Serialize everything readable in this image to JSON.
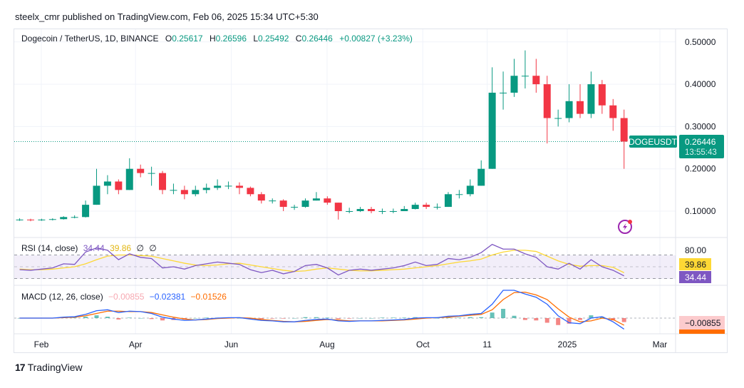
{
  "publisher": "steelx_cmr published on TradingView.com, Feb 06, 2025 15:34 UTC+5:30",
  "footer_logo": "TradingView",
  "colors": {
    "up": "#089981",
    "down": "#f23645",
    "rsi": "#7e57c2",
    "rsi_ma": "#fdd835",
    "macd": "#2962ff",
    "signal": "#ff6d00",
    "hist_up": "#26a69a",
    "hist_down": "#ef5350"
  },
  "legend": {
    "symbol": "Dogecoin / TetherUS, 1D, BINANCE",
    "o_label": "O",
    "o": "0.25617",
    "h_label": "H",
    "h": "0.26596",
    "l_label": "L",
    "l": "0.25492",
    "c_label": "C",
    "c": "0.26446",
    "change": "+0.00827 (+3.23%)"
  },
  "price_tag": {
    "ticker": "DOGEUSDT",
    "price": "0.26446",
    "countdown": "13:55:43"
  },
  "rsi_legend": {
    "title": "RSI (14, close)",
    "rsi": "34.44",
    "ma": "39.86",
    "v3": "∅",
    "v4": "∅"
  },
  "macd_legend": {
    "title": "MACD (12, 26, close)",
    "hist": "−0.00855",
    "macd": "−0.02381",
    "signal": "−0.01526"
  },
  "rsi_axis": {
    "top": "80.00",
    "ma_tag": "39.86",
    "rsi_tag": "34.44"
  },
  "macd_axis": {
    "hist_tag": "−0.00855"
  },
  "icons": {
    "alert": "lightning-icon"
  },
  "chart_data": [
    {
      "type": "candlestick",
      "title": "Dogecoin / TetherUS, 1D, BINANCE",
      "y_ticks": [
        "0.10000",
        "0.20000",
        "0.30000",
        "0.40000",
        "0.50000"
      ],
      "ylim": [
        0.045,
        0.53
      ],
      "x_ticks": [
        {
          "label": "Feb",
          "date": "2024-02-01"
        },
        {
          "label": "Apr",
          "date": "2024-04-01"
        },
        {
          "label": "Jun",
          "date": "2024-06-01"
        },
        {
          "label": "Aug",
          "date": "2024-08-01"
        },
        {
          "label": "Oct",
          "date": "2024-10-01"
        },
        {
          "label": "11",
          "date": "2024-11-11"
        },
        {
          "label": "2025",
          "date": "2025-01-01"
        },
        {
          "label": "Mar",
          "date": "2025-03-01"
        }
      ],
      "last_price": 0.26446,
      "grid": true,
      "dates": [
        "2024-01-15",
        "2024-01-22",
        "2024-01-29",
        "2024-02-05",
        "2024-02-12",
        "2024-02-19",
        "2024-02-26",
        "2024-03-04",
        "2024-03-11",
        "2024-03-18",
        "2024-03-25",
        "2024-04-01",
        "2024-04-08",
        "2024-04-15",
        "2024-04-22",
        "2024-04-29",
        "2024-05-06",
        "2024-05-13",
        "2024-05-20",
        "2024-05-27",
        "2024-06-03",
        "2024-06-10",
        "2024-06-17",
        "2024-06-24",
        "2024-07-01",
        "2024-07-08",
        "2024-07-15",
        "2024-07-22",
        "2024-07-29",
        "2024-08-05",
        "2024-08-12",
        "2024-08-19",
        "2024-08-26",
        "2024-09-02",
        "2024-09-09",
        "2024-09-16",
        "2024-09-23",
        "2024-09-30",
        "2024-10-07",
        "2024-10-14",
        "2024-10-21",
        "2024-10-28",
        "2024-11-04",
        "2024-11-11",
        "2024-11-18",
        "2024-11-25",
        "2024-12-02",
        "2024-12-09",
        "2024-12-16",
        "2024-12-23",
        "2024-12-30",
        "2025-01-06",
        "2025-01-13",
        "2025-01-20",
        "2025-01-27",
        "2025-02-03"
      ],
      "close": [
        0.08,
        0.079,
        0.08,
        0.081,
        0.086,
        0.086,
        0.115,
        0.16,
        0.17,
        0.15,
        0.2,
        0.19,
        0.19,
        0.15,
        0.15,
        0.14,
        0.15,
        0.155,
        0.16,
        0.16,
        0.155,
        0.14,
        0.125,
        0.125,
        0.11,
        0.11,
        0.125,
        0.13,
        0.12,
        0.1,
        0.1,
        0.105,
        0.1,
        0.1,
        0.1,
        0.105,
        0.115,
        0.11,
        0.11,
        0.14,
        0.14,
        0.16,
        0.2,
        0.38,
        0.38,
        0.42,
        0.42,
        0.4,
        0.32,
        0.32,
        0.36,
        0.33,
        0.4,
        0.35,
        0.32,
        0.26446
      ],
      "high": [
        0.083,
        0.082,
        0.082,
        0.083,
        0.088,
        0.09,
        0.125,
        0.2,
        0.185,
        0.175,
        0.225,
        0.21,
        0.205,
        0.195,
        0.165,
        0.16,
        0.16,
        0.165,
        0.175,
        0.17,
        0.168,
        0.158,
        0.145,
        0.13,
        0.128,
        0.115,
        0.13,
        0.145,
        0.135,
        0.12,
        0.108,
        0.11,
        0.11,
        0.106,
        0.106,
        0.112,
        0.12,
        0.12,
        0.118,
        0.145,
        0.15,
        0.175,
        0.22,
        0.44,
        0.43,
        0.46,
        0.48,
        0.46,
        0.42,
        0.34,
        0.4,
        0.4,
        0.43,
        0.41,
        0.365,
        0.34
      ],
      "low": [
        0.077,
        0.076,
        0.077,
        0.078,
        0.08,
        0.083,
        0.085,
        0.115,
        0.14,
        0.14,
        0.15,
        0.18,
        0.16,
        0.14,
        0.14,
        0.128,
        0.135,
        0.142,
        0.15,
        0.152,
        0.14,
        0.135,
        0.118,
        0.118,
        0.1,
        0.103,
        0.108,
        0.125,
        0.115,
        0.08,
        0.095,
        0.098,
        0.095,
        0.093,
        0.095,
        0.1,
        0.104,
        0.105,
        0.104,
        0.11,
        0.13,
        0.135,
        0.16,
        0.2,
        0.34,
        0.37,
        0.39,
        0.38,
        0.26,
        0.3,
        0.31,
        0.32,
        0.32,
        0.33,
        0.29,
        0.2
      ]
    },
    {
      "type": "line",
      "title": "RSI (14, close)",
      "y_ticks": [
        "80.00"
      ],
      "ylim": [
        15,
        90
      ],
      "bands": [
        30,
        50,
        70
      ],
      "series": [
        {
          "name": "RSI",
          "values": [
            45,
            44,
            46,
            48,
            55,
            54,
            75,
            82,
            78,
            62,
            72,
            66,
            64,
            48,
            50,
            46,
            52,
            55,
            58,
            56,
            54,
            45,
            40,
            44,
            38,
            42,
            52,
            54,
            48,
            36,
            44,
            46,
            44,
            46,
            48,
            52,
            58,
            52,
            54,
            64,
            62,
            66,
            74,
            88,
            80,
            80,
            72,
            66,
            50,
            46,
            56,
            46,
            62,
            50,
            44,
            34.44
          ]
        },
        {
          "name": "RSI MA",
          "values": [
            46,
            45,
            45,
            46,
            48,
            50,
            55,
            62,
            68,
            70,
            70,
            69,
            68,
            64,
            60,
            56,
            53,
            52,
            53,
            55,
            56,
            53,
            50,
            47,
            44,
            42,
            43,
            46,
            48,
            46,
            44,
            43,
            43,
            44,
            45,
            46,
            48,
            50,
            52,
            55,
            58,
            60,
            63,
            70,
            75,
            78,
            78,
            76,
            68,
            60,
            54,
            51,
            52,
            52,
            49,
            39.86
          ]
        }
      ]
    },
    {
      "type": "line",
      "title": "MACD (12, 26, close)",
      "series": [
        {
          "name": "MACD",
          "values": [
            0,
            0,
            0,
            0,
            0.002,
            0.003,
            0.008,
            0.016,
            0.018,
            0.012,
            0.015,
            0.014,
            0.01,
            0.002,
            -0.002,
            -0.005,
            -0.004,
            -0.002,
            0.0,
            0.001,
            0.001,
            -0.002,
            -0.005,
            -0.006,
            -0.008,
            -0.008,
            -0.005,
            -0.003,
            -0.002,
            -0.006,
            -0.007,
            -0.006,
            -0.006,
            -0.005,
            -0.004,
            -0.003,
            0.0,
            0.001,
            0.001,
            0.004,
            0.005,
            0.008,
            0.01,
            0.03,
            0.06,
            0.06,
            0.052,
            0.045,
            0.03,
            0.005,
            -0.01,
            -0.012,
            0.0,
            0.003,
            -0.008,
            -0.02381
          ]
        },
        {
          "name": "Signal",
          "values": [
            0,
            0,
            0,
            0,
            0.001,
            0.002,
            0.005,
            0.01,
            0.015,
            0.015,
            0.014,
            0.014,
            0.012,
            0.007,
            0.002,
            -0.002,
            -0.004,
            -0.003,
            -0.001,
            0.0,
            0.001,
            0.0,
            -0.003,
            -0.005,
            -0.007,
            -0.008,
            -0.007,
            -0.005,
            -0.003,
            -0.004,
            -0.006,
            -0.006,
            -0.006,
            -0.006,
            -0.005,
            -0.004,
            -0.002,
            0.0,
            0.001,
            0.002,
            0.004,
            0.006,
            0.008,
            0.018,
            0.04,
            0.055,
            0.056,
            0.05,
            0.04,
            0.02,
            0.002,
            -0.008,
            -0.006,
            0.0,
            -0.003,
            -0.01526
          ]
        }
      ]
    }
  ]
}
